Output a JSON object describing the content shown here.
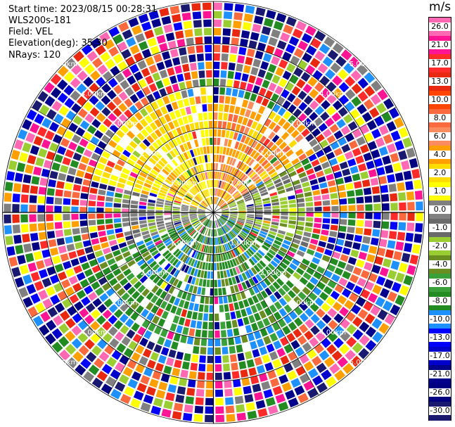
{
  "header": {
    "start_time": "Start time: 2023/08/15 00:28:31",
    "site": "WLS200s-181",
    "field": "Field: VEL",
    "elevation": "Elevation(deg): 35.30",
    "nrays": "NRays: 120"
  },
  "chart_data": {
    "type": "heatmap",
    "projection": "polar-ppi",
    "field": "VEL",
    "nrays": 120,
    "elevation_deg": 35.3,
    "range_rings": [
      {
        "label": "1.00km",
        "radius_km": 1
      },
      {
        "label": "2.00km",
        "radius_km": 2
      },
      {
        "label": "3.00km",
        "radius_km": 3
      },
      {
        "label": "4.00km",
        "radius_km": 4
      },
      {
        "label": "5.00km",
        "radius_km": 5
      }
    ],
    "colorbar": {
      "unit": "m/s",
      "ticks": [
        "26.0",
        "21.0",
        "17.0",
        "13.0",
        "10.0",
        "8.0",
        "6.0",
        "4.0",
        "2.0",
        "1.0",
        "0.0",
        "-1.0",
        "-2.0",
        "-4.0",
        "-6.0",
        "-8.0",
        "-10.0",
        "-13.0",
        "-17.0",
        "-21.0",
        "-26.0",
        "-30.0"
      ],
      "colors": [
        "#ff69b4",
        "#ff1493",
        "#ff2a2a",
        "#e8290f",
        "#ff4500",
        "#fa6a3e",
        "#fb8c5f",
        "#ff9f00",
        "#ffdc00",
        "#ffff00",
        "#808080",
        "#6a6a6a",
        "#9acd32",
        "#6b8e23",
        "#3aa13a",
        "#228b22",
        "#1e90ff",
        "#0000ff",
        "#0000cd",
        "#00008b",
        "#000080",
        "#191970"
      ]
    },
    "sectors": [
      {
        "az_from": 0,
        "az_to": 60,
        "velocity_band": "6.0 to 8.0",
        "max_range_km": 2.8
      },
      {
        "az_from": 60,
        "az_to": 110,
        "velocity_band": "0.0 to -2.0",
        "max_range_km": 2.4
      },
      {
        "az_from": 110,
        "az_to": 250,
        "velocity_band": "-4.0 to -8.0",
        "max_range_km": 3.3
      },
      {
        "az_from": 250,
        "az_to": 285,
        "velocity_band": "0.0 to -1.0",
        "max_range_km": 2.2
      },
      {
        "az_from": 285,
        "az_to": 360,
        "velocity_band": "2.0 to 4.0",
        "max_range_km": 3.0
      }
    ],
    "outer_region": "noise (mixed colours) beyond the sector ranges"
  }
}
